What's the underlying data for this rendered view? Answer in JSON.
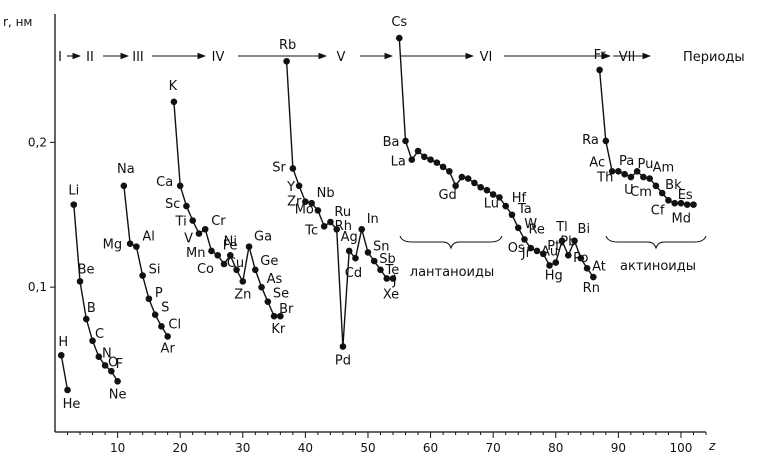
{
  "chart_data": {
    "type": "line",
    "ylabel": "r, нм",
    "xlabel": "z",
    "xlim": [
      0,
      104
    ],
    "ylim": [
      0,
      0.29
    ],
    "x_ticks": [
      10,
      20,
      30,
      40,
      50,
      60,
      70,
      80,
      90,
      100
    ],
    "y_ticks": [
      {
        "value": 0.1,
        "label": "0,1"
      },
      {
        "value": 0.2,
        "label": "0,2"
      }
    ],
    "periods": [
      "I",
      "II",
      "III",
      "IV",
      "V",
      "VI",
      "VII",
      "Периоды"
    ],
    "group_labels": [
      "лантаноиды",
      "актиноиды"
    ],
    "series": [
      {
        "points": [
          {
            "z": 1,
            "r": 0.053,
            "label": "H"
          },
          {
            "z": 2,
            "r": 0.029,
            "label": "He"
          }
        ]
      },
      {
        "points": [
          {
            "z": 3,
            "r": 0.157,
            "label": "Li"
          },
          {
            "z": 4,
            "r": 0.104,
            "label": "Be"
          },
          {
            "z": 5,
            "r": 0.078,
            "label": "B"
          },
          {
            "z": 6,
            "r": 0.063,
            "label": "C"
          },
          {
            "z": 7,
            "r": 0.052,
            "label": "N"
          },
          {
            "z": 8,
            "r": 0.046,
            "label": "O"
          },
          {
            "z": 9,
            "r": 0.042,
            "label": "F"
          },
          {
            "z": 10,
            "r": 0.035,
            "label": "Ne"
          }
        ]
      },
      {
        "points": [
          {
            "z": 11,
            "r": 0.17,
            "label": "Na"
          },
          {
            "z": 12,
            "r": 0.13,
            "label": "Mg"
          },
          {
            "z": 13,
            "r": 0.128,
            "label": "Al"
          },
          {
            "z": 14,
            "r": 0.108,
            "label": "Si"
          },
          {
            "z": 15,
            "r": 0.092,
            "label": "P"
          },
          {
            "z": 16,
            "r": 0.081,
            "label": "S"
          },
          {
            "z": 17,
            "r": 0.073,
            "label": "Cl"
          },
          {
            "z": 18,
            "r": 0.066,
            "label": "Ar"
          }
        ]
      },
      {
        "points": [
          {
            "z": 19,
            "r": 0.228,
            "label": "K"
          },
          {
            "z": 20,
            "r": 0.17,
            "label": "Ca"
          },
          {
            "z": 21,
            "r": 0.156,
            "label": "Sc"
          },
          {
            "z": 22,
            "r": 0.146,
            "label": "Ti"
          },
          {
            "z": 23,
            "r": 0.137,
            "label": "V"
          },
          {
            "z": 24,
            "r": 0.14,
            "label": "Cr"
          },
          {
            "z": 25,
            "r": 0.125,
            "label": "Mn"
          },
          {
            "z": 26,
            "r": 0.122,
            "label": "Fe"
          },
          {
            "z": 27,
            "r": 0.116,
            "label": "Co"
          },
          {
            "z": 28,
            "r": 0.122,
            "label": "Ni"
          },
          {
            "z": 29,
            "r": 0.112,
            "label": "Cu"
          },
          {
            "z": 30,
            "r": 0.104,
            "label": "Zn"
          },
          {
            "z": 31,
            "r": 0.128,
            "label": "Ga"
          },
          {
            "z": 32,
            "r": 0.112,
            "label": "Ge"
          },
          {
            "z": 33,
            "r": 0.1,
            "label": "As"
          },
          {
            "z": 34,
            "r": 0.09,
            "label": "Se"
          },
          {
            "z": 35,
            "r": 0.08,
            "label": "Br"
          },
          {
            "z": 36,
            "r": 0.08,
            "label": "Kr"
          }
        ]
      },
      {
        "points": [
          {
            "z": 37,
            "r": 0.256,
            "label": "Rb"
          },
          {
            "z": 38,
            "r": 0.182,
            "label": "Sr"
          },
          {
            "z": 39,
            "r": 0.17,
            "label": "Y"
          },
          {
            "z": 40,
            "r": 0.159,
            "label": "Zr"
          },
          {
            "z": 41,
            "r": 0.158,
            "label": "Nb"
          },
          {
            "z": 42,
            "r": 0.153,
            "label": "Mo"
          },
          {
            "z": 43,
            "r": 0.142,
            "label": "Tc"
          },
          {
            "z": 44,
            "r": 0.145,
            "label": "Ru"
          },
          {
            "z": 45,
            "r": 0.14,
            "label": "Rh"
          },
          {
            "z": 46,
            "r": 0.059,
            "label": "Pd"
          },
          {
            "z": 47,
            "r": 0.125,
            "label": "Ag"
          },
          {
            "z": 48,
            "r": 0.12,
            "label": "Cd"
          },
          {
            "z": 49,
            "r": 0.14,
            "label": "In"
          },
          {
            "z": 50,
            "r": 0.124,
            "label": "Sn"
          },
          {
            "z": 51,
            "r": 0.118,
            "label": "Sb"
          },
          {
            "z": 52,
            "r": 0.112,
            "label": "Te"
          },
          {
            "z": 53,
            "r": 0.106,
            "label": "J"
          },
          {
            "z": 54,
            "r": 0.106,
            "label": "Xe"
          }
        ]
      },
      {
        "points": [
          {
            "z": 55,
            "r": 0.272,
            "label": "Cs"
          },
          {
            "z": 56,
            "r": 0.201,
            "label": "Ba"
          },
          {
            "z": 57,
            "r": 0.188,
            "label": "La"
          },
          {
            "z": 58,
            "r": 0.194,
            "label": ""
          },
          {
            "z": 59,
            "r": 0.19,
            "label": ""
          },
          {
            "z": 60,
            "r": 0.188,
            "label": ""
          },
          {
            "z": 61,
            "r": 0.186,
            "label": ""
          },
          {
            "z": 62,
            "r": 0.183,
            "label": ""
          },
          {
            "z": 63,
            "r": 0.18,
            "label": ""
          },
          {
            "z": 64,
            "r": 0.17,
            "label": "Gd"
          },
          {
            "z": 65,
            "r": 0.176,
            "label": ""
          },
          {
            "z": 66,
            "r": 0.175,
            "label": ""
          },
          {
            "z": 67,
            "r": 0.172,
            "label": ""
          },
          {
            "z": 68,
            "r": 0.169,
            "label": ""
          },
          {
            "z": 69,
            "r": 0.167,
            "label": ""
          },
          {
            "z": 70,
            "r": 0.164,
            "label": ""
          },
          {
            "z": 71,
            "r": 0.162,
            "label": "Lu"
          },
          {
            "z": 72,
            "r": 0.156,
            "label": "Hf"
          },
          {
            "z": 73,
            "r": 0.15,
            "label": "Ta"
          },
          {
            "z": 74,
            "r": 0.141,
            "label": "W"
          },
          {
            "z": 75,
            "r": 0.133,
            "label": "Re"
          },
          {
            "z": 76,
            "r": 0.127,
            "label": "Os"
          },
          {
            "z": 77,
            "r": 0.125,
            "label": "Jr"
          },
          {
            "z": 78,
            "r": 0.123,
            "label": "Pt"
          },
          {
            "z": 79,
            "r": 0.115,
            "label": "Au"
          },
          {
            "z": 80,
            "r": 0.117,
            "label": "Hg"
          },
          {
            "z": 81,
            "r": 0.132,
            "label": "Tl"
          },
          {
            "z": 82,
            "r": 0.122,
            "label": "Pb"
          },
          {
            "z": 83,
            "r": 0.132,
            "label": "Bi"
          },
          {
            "z": 84,
            "r": 0.12,
            "label": "Po"
          },
          {
            "z": 85,
            "r": 0.113,
            "label": "At"
          },
          {
            "z": 86,
            "r": 0.107,
            "label": "Rn"
          }
        ]
      },
      {
        "points": [
          {
            "z": 87,
            "r": 0.25,
            "label": "Fr"
          },
          {
            "z": 88,
            "r": 0.201,
            "label": "Ra"
          },
          {
            "z": 89,
            "r": 0.18,
            "label": "Ac"
          },
          {
            "z": 90,
            "r": 0.18,
            "label": "Th"
          },
          {
            "z": 91,
            "r": 0.178,
            "label": "Pa"
          },
          {
            "z": 92,
            "r": 0.176,
            "label": "U"
          },
          {
            "z": 93,
            "r": 0.18,
            "label": ""
          },
          {
            "z": 94,
            "r": 0.176,
            "label": "Pu"
          },
          {
            "z": 95,
            "r": 0.175,
            "label": "Am"
          },
          {
            "z": 96,
            "r": 0.17,
            "label": "Cm"
          },
          {
            "z": 97,
            "r": 0.165,
            "label": "Bk"
          },
          {
            "z": 98,
            "r": 0.16,
            "label": "Cf"
          },
          {
            "z": 99,
            "r": 0.158,
            "label": "Es"
          },
          {
            "z": 100,
            "r": 0.158,
            "label": ""
          },
          {
            "z": 101,
            "r": 0.157,
            "label": "Md"
          },
          {
            "z": 102,
            "r": 0.157,
            "label": ""
          }
        ]
      }
    ]
  }
}
